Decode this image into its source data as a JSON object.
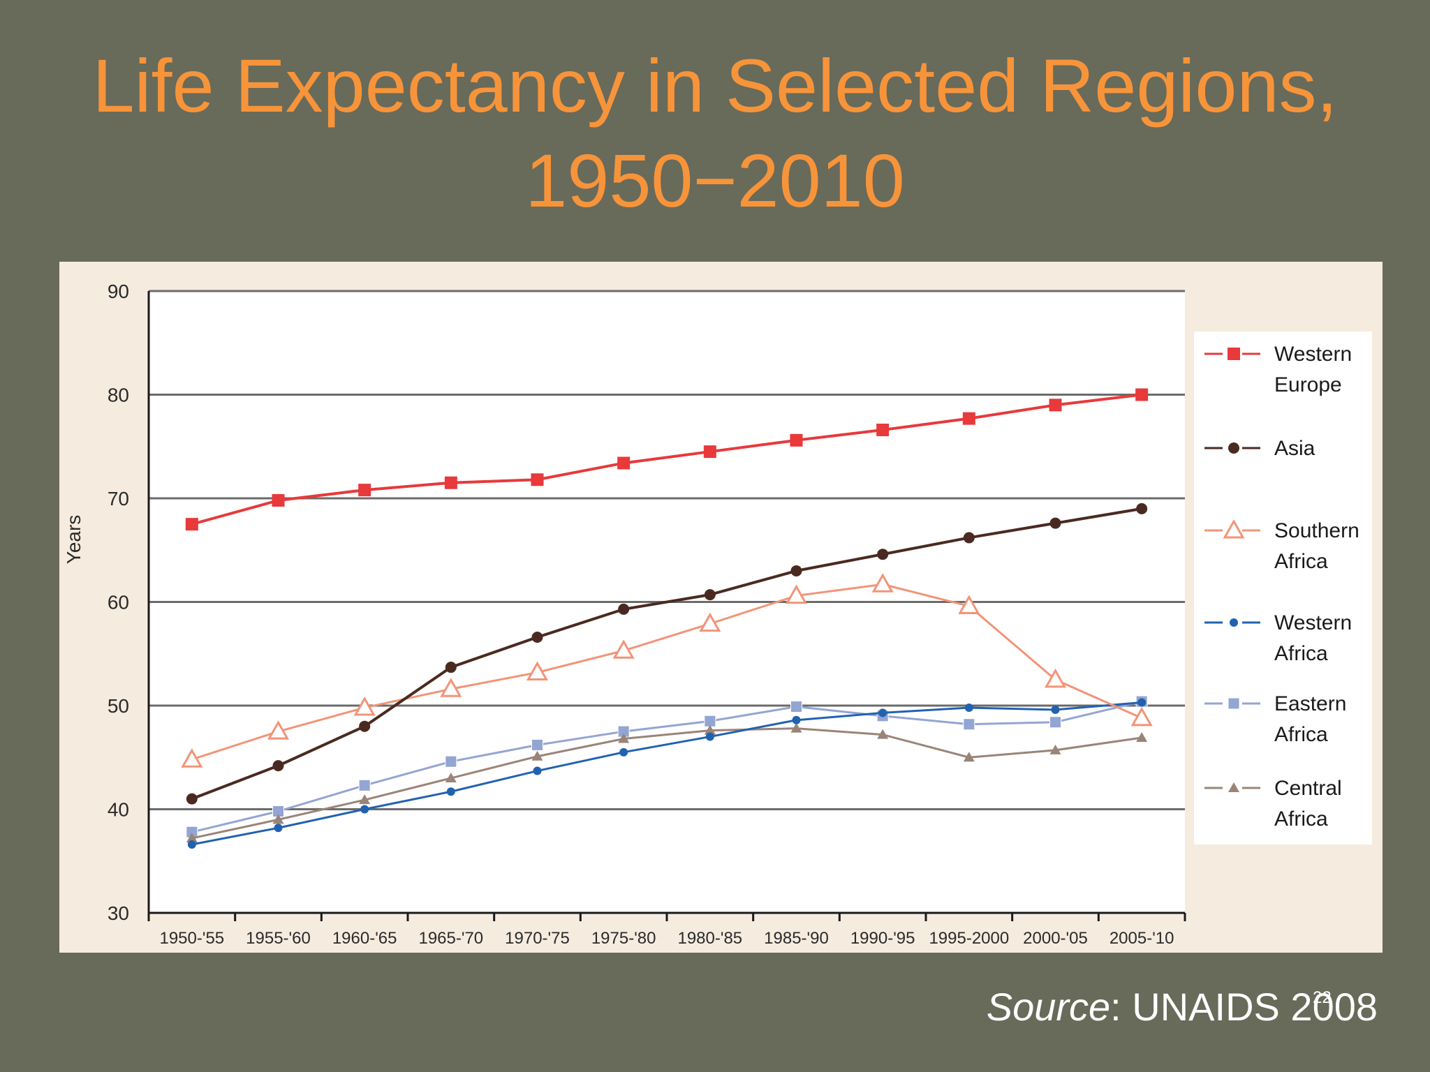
{
  "slide": {
    "title_line1": "Life Expectancy in Selected Regions,",
    "title_line2": "1950−2010",
    "source_label": "Source",
    "source_text": ": UNAIDS 2008",
    "slide_number": "22"
  },
  "chart_data": {
    "type": "line",
    "ylabel": "Years",
    "xlabel": "",
    "ylim": [
      30,
      90
    ],
    "yticks": [
      30,
      40,
      50,
      60,
      70,
      80,
      90
    ],
    "grid": true,
    "legend_position": "right",
    "categories": [
      "1950-'55",
      "1955-'60",
      "1960-'65",
      "1965-'70",
      "1970-'75",
      "1975-'80",
      "1980-'85",
      "1985-'90",
      "1990-'95",
      "1995-2000",
      "2000-'05",
      "2005-'10"
    ],
    "series": [
      {
        "name": "Western Europe",
        "label_lines": [
          "Western",
          "Europe"
        ],
        "color": "#e8393b",
        "marker": "square",
        "values": [
          67.5,
          69.8,
          70.8,
          71.5,
          71.8,
          73.4,
          74.5,
          75.6,
          76.6,
          77.7,
          79.0,
          80.0
        ]
      },
      {
        "name": "Asia",
        "label_lines": [
          "Asia"
        ],
        "color": "#4a2a20",
        "marker": "dot",
        "values": [
          41.0,
          44.2,
          48.0,
          53.7,
          56.6,
          59.3,
          60.7,
          63.0,
          64.6,
          66.2,
          67.6,
          69.0
        ]
      },
      {
        "name": "Southern Africa",
        "label_lines": [
          "Southern",
          "Africa"
        ],
        "color": "#f29478",
        "marker": "triangle-open",
        "values": [
          44.8,
          47.5,
          49.8,
          51.6,
          53.2,
          55.3,
          57.9,
          60.6,
          61.7,
          59.6,
          52.5,
          48.8
        ]
      },
      {
        "name": "Western Africa",
        "label_lines": [
          "Western",
          "Africa"
        ],
        "color": "#2162b0",
        "marker": "dot-small",
        "values": [
          36.6,
          38.2,
          40.0,
          41.7,
          43.7,
          45.5,
          47.0,
          48.6,
          49.3,
          49.8,
          49.6,
          50.3
        ]
      },
      {
        "name": "Eastern Africa",
        "label_lines": [
          "Eastern",
          "Africa"
        ],
        "color": "#93a5d3",
        "marker": "square-light",
        "values": [
          37.8,
          39.8,
          42.3,
          44.6,
          46.2,
          47.5,
          48.5,
          49.9,
          49.0,
          48.2,
          48.4,
          50.4
        ]
      },
      {
        "name": "Central Africa",
        "label_lines": [
          "Central",
          "Africa"
        ],
        "color": "#9a8478",
        "marker": "triangle-small",
        "values": [
          37.2,
          39.0,
          40.9,
          43.0,
          45.1,
          46.8,
          47.6,
          47.8,
          47.2,
          45.0,
          45.7,
          46.9
        ]
      }
    ]
  }
}
